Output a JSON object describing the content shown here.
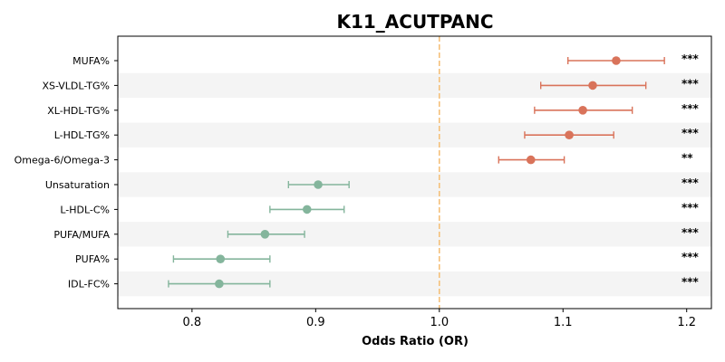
{
  "chart_data": {
    "type": "forest",
    "title": "K11_ACUTPANC",
    "xlabel": "Odds Ratio (OR)",
    "xlim": [
      0.74,
      1.22
    ],
    "xticks": [
      0.8,
      0.9,
      1.0,
      1.1,
      1.2
    ],
    "xtick_labels": [
      "0.8",
      "0.9",
      "1.0",
      "1.1",
      "1.2"
    ],
    "reference_line": 1.0,
    "reference_color": "#f5c07a",
    "colors": {
      "above": "#d9735a",
      "below": "#84b59c"
    },
    "rows": [
      {
        "label": "MUFA%",
        "or": 1.143,
        "lo": 1.104,
        "hi": 1.182,
        "sig": "***"
      },
      {
        "label": "XS-VLDL-TG%",
        "or": 1.124,
        "lo": 1.082,
        "hi": 1.167,
        "sig": "***"
      },
      {
        "label": "XL-HDL-TG%",
        "or": 1.116,
        "lo": 1.077,
        "hi": 1.156,
        "sig": "***"
      },
      {
        "label": "L-HDL-TG%",
        "or": 1.105,
        "lo": 1.069,
        "hi": 1.141,
        "sig": "***"
      },
      {
        "label": "Omega-6/Omega-3",
        "or": 1.074,
        "lo": 1.048,
        "hi": 1.101,
        "sig": "**"
      },
      {
        "label": "Unsaturation",
        "or": 0.902,
        "lo": 0.878,
        "hi": 0.927,
        "sig": "***"
      },
      {
        "label": "L-HDL-C%",
        "or": 0.893,
        "lo": 0.863,
        "hi": 0.923,
        "sig": "***"
      },
      {
        "label": "PUFA/MUFA",
        "or": 0.859,
        "lo": 0.829,
        "hi": 0.891,
        "sig": "***"
      },
      {
        "label": "PUFA%",
        "or": 0.823,
        "lo": 0.785,
        "hi": 0.863,
        "sig": "***"
      },
      {
        "label": "IDL-FC%",
        "or": 0.822,
        "lo": 0.781,
        "hi": 0.863,
        "sig": "***"
      }
    ]
  }
}
